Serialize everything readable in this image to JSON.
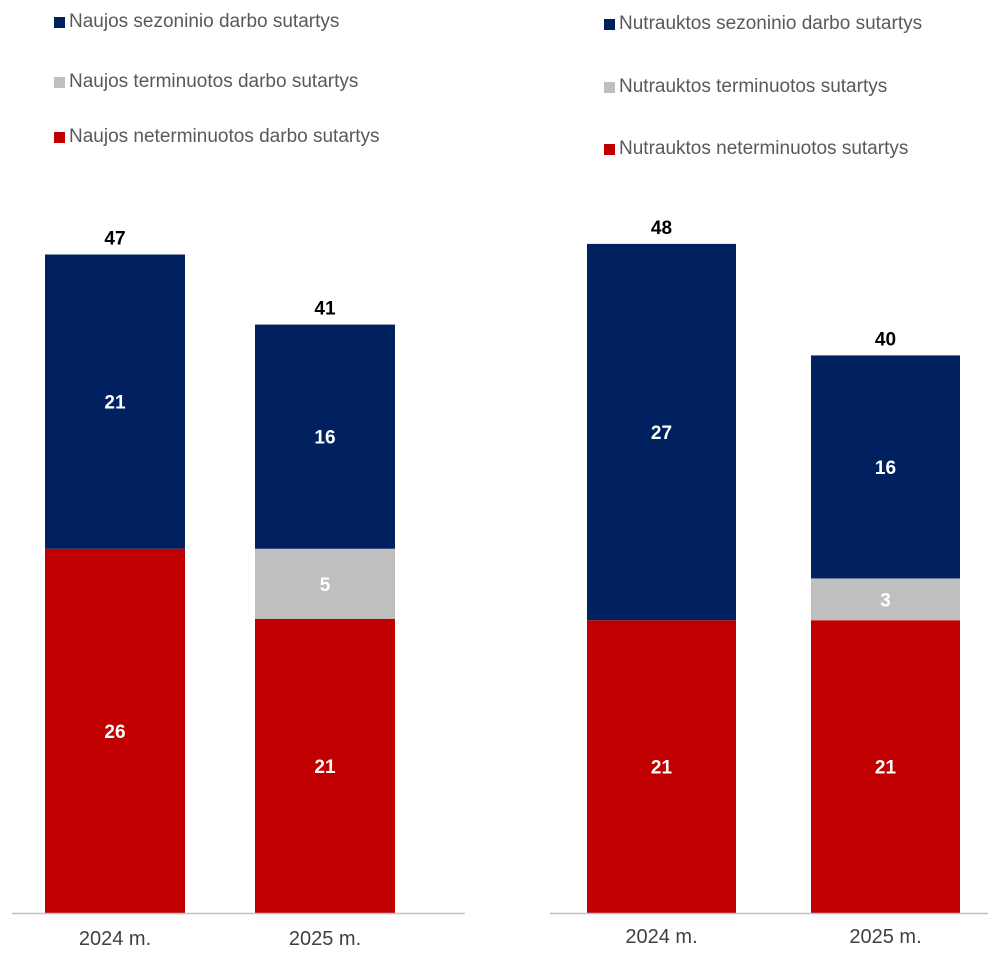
{
  "chart_data": [
    {
      "type": "bar",
      "stacked": true,
      "categories": [
        "2024 m.",
        "2025 m."
      ],
      "legend": "top-left",
      "grid": false,
      "series": [
        {
          "name": "Naujos sezoninio darbo sutartys",
          "color": "#002060",
          "values": [
            21,
            16
          ]
        },
        {
          "name": "Naujos terminuotos darbo sutartys",
          "color": "#BFBFBF",
          "values": [
            0,
            5
          ]
        },
        {
          "name": "Naujos neterminuotos darbo sutartys",
          "color": "#C00000",
          "values": [
            26,
            21
          ]
        }
      ],
      "totals": [
        "47",
        "41"
      ],
      "segment_labels": [
        [
          "21",
          "",
          "26"
        ],
        [
          "16",
          "5",
          "21"
        ]
      ]
    },
    {
      "type": "bar",
      "stacked": true,
      "categories": [
        "2024 m.",
        "2025 m."
      ],
      "legend": "top-left",
      "grid": false,
      "series": [
        {
          "name": "Nutrauktos sezoninio darbo sutartys",
          "color": "#002060",
          "values": [
            27,
            16
          ]
        },
        {
          "name": "Nutrauktos terminuotos sutartys",
          "color": "#BFBFBF",
          "values": [
            0,
            3
          ]
        },
        {
          "name": "Nutrauktos neterminuotos sutartys",
          "color": "#C00000",
          "values": [
            21,
            21
          ]
        }
      ],
      "totals": [
        "48",
        "40"
      ],
      "segment_labels": [
        [
          "27",
          "",
          "21"
        ],
        [
          "16",
          "3",
          "21"
        ]
      ]
    }
  ]
}
